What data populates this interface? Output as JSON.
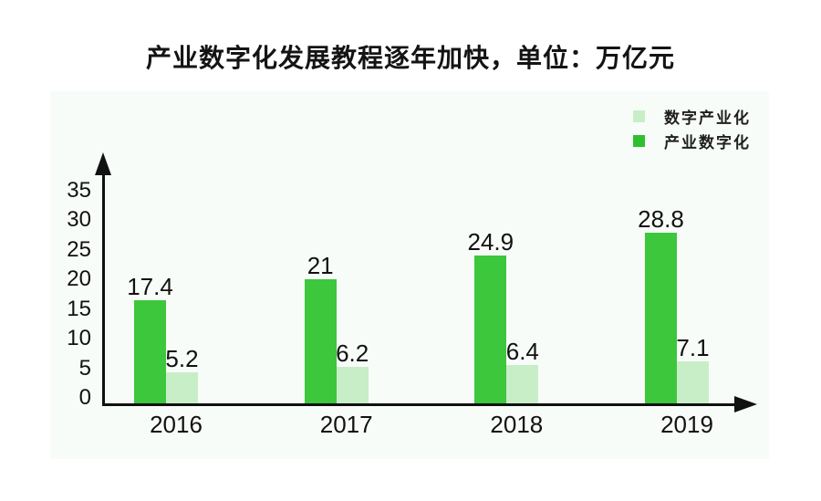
{
  "title": "产业数字化发展教程逐年加快，单位：万亿元",
  "legend": {
    "items": [
      {
        "label": "数字产业化",
        "color": "#C8EEC8"
      },
      {
        "label": "产业数字化",
        "color": "#2FBE2F"
      }
    ]
  },
  "chart_data": {
    "type": "bar",
    "title": "产业数字化发展教程逐年加快",
    "unit": "万亿元",
    "categories": [
      "2016",
      "2017",
      "2018",
      "2019"
    ],
    "series": [
      {
        "name": "产业数字化",
        "color": "#3CC73C",
        "values": [
          17.4,
          21,
          24.9,
          28.8
        ],
        "labels": [
          "17.4",
          "21",
          "24.9",
          "28.8"
        ]
      },
      {
        "name": "数字产业化",
        "color": "#C8EEC8",
        "values": [
          5.2,
          6.2,
          6.4,
          7.1
        ],
        "labels": [
          "5.2",
          "6.2",
          "6.4",
          "7.1"
        ]
      }
    ],
    "yticks": [
      35,
      30,
      25,
      20,
      15,
      10,
      5,
      0
    ],
    "ylim": [
      0,
      35
    ],
    "legend_position": "top-right",
    "grid": false,
    "colors": {
      "axis": "#111111",
      "panel_background": "#F8FCF8",
      "page_background": "#FFFFFF"
    }
  }
}
